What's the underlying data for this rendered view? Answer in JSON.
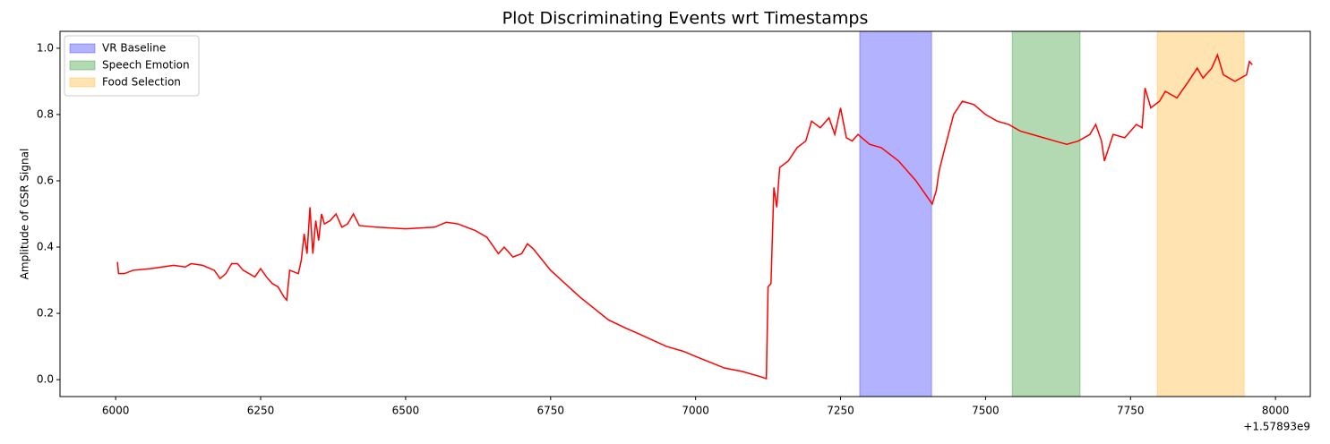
{
  "chart_data": {
    "type": "line",
    "title": "Plot Discriminating Events wrt Timestamps",
    "ylabel": "Amplitude of GSR Signal",
    "x_offset_label": "+1.57893e9",
    "x": [
      6003,
      6005,
      6015,
      6030,
      6060,
      6080,
      6100,
      6120,
      6130,
      6150,
      6170,
      6180,
      6190,
      6200,
      6210,
      6220,
      6240,
      6250,
      6260,
      6270,
      6280,
      6290,
      6295,
      6300,
      6315,
      6320,
      6325,
      6330,
      6335,
      6340,
      6345,
      6350,
      6355,
      6360,
      6370,
      6380,
      6390,
      6400,
      6410,
      6420,
      6450,
      6500,
      6550,
      6570,
      6590,
      6620,
      6640,
      6660,
      6670,
      6685,
      6700,
      6710,
      6720,
      6750,
      6800,
      6850,
      6880,
      6900,
      6950,
      6980,
      7000,
      7050,
      7080,
      7110,
      7122,
      7125,
      7130,
      7135,
      7140,
      7145,
      7160,
      7175,
      7190,
      7200,
      7215,
      7230,
      7240,
      7250,
      7260,
      7270,
      7280,
      7300,
      7320,
      7350,
      7380,
      7400,
      7408,
      7415,
      7420,
      7430,
      7445,
      7460,
      7480,
      7500,
      7520,
      7540,
      7560,
      7580,
      7600,
      7620,
      7640,
      7660,
      7680,
      7690,
      7700,
      7705,
      7720,
      7740,
      7760,
      7770,
      7775,
      7785,
      7800,
      7810,
      7830,
      7850,
      7865,
      7875,
      7890,
      7900,
      7910,
      7930,
      7950,
      7955,
      7960
    ],
    "series": [
      {
        "color": "#ff0000",
        "values": [
          0.355,
          0.32,
          0.32,
          0.33,
          0.335,
          0.34,
          0.345,
          0.34,
          0.35,
          0.345,
          0.33,
          0.305,
          0.32,
          0.35,
          0.35,
          0.33,
          0.31,
          0.335,
          0.31,
          0.29,
          0.28,
          0.25,
          0.24,
          0.33,
          0.32,
          0.36,
          0.44,
          0.38,
          0.52,
          0.38,
          0.48,
          0.42,
          0.5,
          0.47,
          0.48,
          0.5,
          0.46,
          0.47,
          0.5,
          0.465,
          0.46,
          0.455,
          0.46,
          0.475,
          0.47,
          0.45,
          0.43,
          0.38,
          0.4,
          0.37,
          0.38,
          0.41,
          0.395,
          0.33,
          0.25,
          0.18,
          0.155,
          0.14,
          0.1,
          0.085,
          0.07,
          0.035,
          0.025,
          0.01,
          0.003,
          0.28,
          0.29,
          0.58,
          0.52,
          0.64,
          0.66,
          0.7,
          0.72,
          0.78,
          0.76,
          0.79,
          0.74,
          0.82,
          0.73,
          0.72,
          0.74,
          0.71,
          0.7,
          0.66,
          0.6,
          0.55,
          0.53,
          0.57,
          0.63,
          0.7,
          0.8,
          0.84,
          0.83,
          0.8,
          0.78,
          0.77,
          0.75,
          0.74,
          0.73,
          0.72,
          0.71,
          0.72,
          0.74,
          0.77,
          0.72,
          0.66,
          0.74,
          0.73,
          0.77,
          0.76,
          0.88,
          0.82,
          0.84,
          0.87,
          0.85,
          0.9,
          0.94,
          0.91,
          0.94,
          0.98,
          0.92,
          0.9,
          0.92,
          0.96,
          0.95
        ]
      }
    ],
    "spans": [
      {
        "name": "VR Baseline",
        "color": "#0000ff",
        "start": 7283,
        "end": 7407
      },
      {
        "name": "Speech Emotion",
        "color": "#008000",
        "start": 7546,
        "end": 7663
      },
      {
        "name": "Food Selection",
        "color": "#ffa500",
        "start": 7796,
        "end": 7946
      }
    ],
    "span_alpha": 0.3,
    "xlim": [
      5904,
      8060
    ],
    "ylim": [
      -0.051,
      1.051
    ],
    "xticks": [
      6000,
      6250,
      6500,
      6750,
      7000,
      7250,
      7500,
      7750,
      8000
    ],
    "yticks": [
      {
        "value": 0,
        "label": "0.0"
      },
      0.2,
      0.4,
      0.6,
      0.8,
      {
        "value": 1,
        "label": "1.0"
      }
    ],
    "legend": "upper left"
  }
}
